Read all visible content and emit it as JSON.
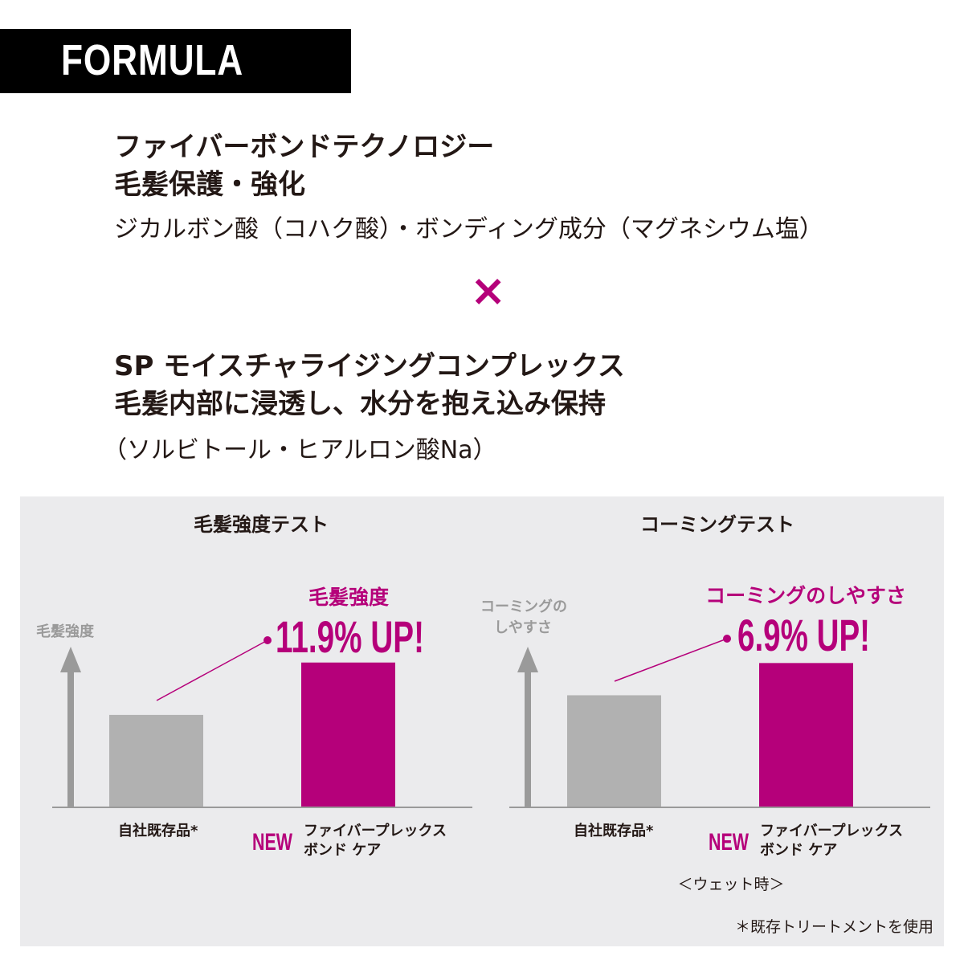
{
  "header": {
    "badge": "FORMULA"
  },
  "formula": {
    "tech1_title": "ファイバーボンドテクノロジー",
    "tech1_benefit": "毛髪保護・強化",
    "tech1_ingredients": "ジカルボン酸（コハク酸）・ボンディング成分（マグネシウム塩）",
    "times_symbol": "×",
    "tech2_title": "SP モイスチャライジングコンプレックス",
    "tech2_benefit": "毛髪内部に浸透し、水分を抱え込み保持",
    "tech2_ingredients": "（ソルビトール・ヒアルロン酸Na）"
  },
  "colors": {
    "accent": "#b5007a",
    "old_bar": "#b1b1b1",
    "axis": "#9a9a9a",
    "panel": "#ebebed"
  },
  "chart_data": [
    {
      "type": "bar",
      "title": "毛髪強度テスト",
      "ylabel": "毛髪強度",
      "ylim": [
        79,
        115.5
      ],
      "grid": false,
      "categories": [
        "自社既存品*",
        "ファイバープレックス ボンド ケア"
      ],
      "category_lines": [
        [
          "自社既存品*"
        ],
        [
          "ファイバープレックス",
          "ボンド ケア"
        ]
      ],
      "new_tag": "NEW",
      "values": [
        100,
        111.9
      ],
      "highlight_label": "毛髪強度",
      "highlight_value": "11.9% UP!"
    },
    {
      "type": "bar",
      "title": "コーミングテスト",
      "ylabel_lines": [
        "コーミングの",
        "しやすさ"
      ],
      "ylim": [
        76,
        110.4
      ],
      "grid": false,
      "categories": [
        "自社既存品*",
        "ファイバープレックス ボンド ケア"
      ],
      "category_lines": [
        [
          "自社既存品*"
        ],
        [
          "ファイバープレックス",
          "ボンド ケア"
        ]
      ],
      "new_tag": "NEW",
      "values": [
        100,
        106.9
      ],
      "highlight_label": "コーミングのしやすさ",
      "highlight_value": "6.9% UP!",
      "condition": "＜ウェット時＞"
    }
  ],
  "footnote": "＊既存トリートメントを使用"
}
